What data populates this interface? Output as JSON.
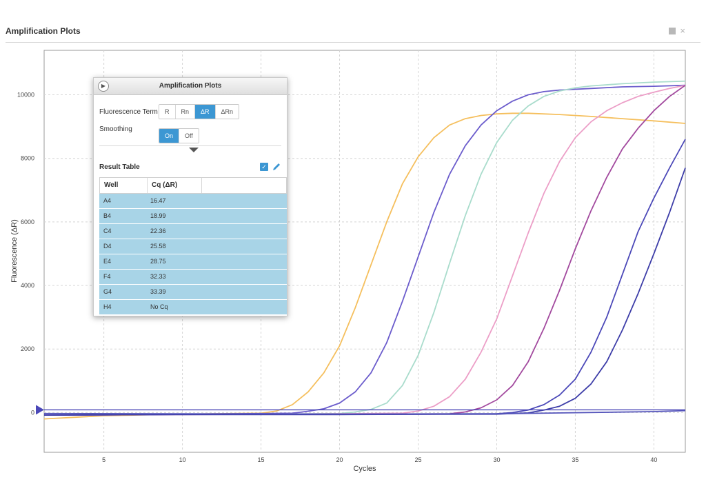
{
  "window": {
    "title": "Amplification Plots",
    "controls": [
      "square-icon",
      "close-icon"
    ],
    "close_glyph": "×"
  },
  "panel": {
    "title": "Amplification Plots",
    "fluorescence_label": "Fluorescence Term",
    "fluorescence_options": [
      "R",
      "Rn",
      "ΔR",
      "ΔRn"
    ],
    "fluorescence_selected": "ΔR",
    "smoothing_label": "Smoothing",
    "smoothing_options": [
      "On",
      "Off"
    ],
    "smoothing_selected": "On",
    "result_table": {
      "title": "Result Table",
      "columns": [
        "Well",
        "Cq (ΔR)"
      ],
      "rows": [
        [
          "A4",
          "16.47"
        ],
        [
          "B4",
          "18.99"
        ],
        [
          "C4",
          "22.36"
        ],
        [
          "D4",
          "25.58"
        ],
        [
          "E4",
          "28.75"
        ],
        [
          "F4",
          "32.33"
        ],
        [
          "G4",
          "33.39"
        ],
        [
          "H4",
          "No Cq"
        ]
      ]
    }
  },
  "colors": {
    "accent": "#3c97d3",
    "row_bg": "#a8d4e7"
  },
  "chart_data": {
    "type": "line",
    "title": "",
    "xlabel": "Cycles",
    "ylabel": "Fluorescence (ΔR)",
    "xlim": [
      1.2,
      42
    ],
    "ylim": [
      -1250,
      11400
    ],
    "xticks": [
      5,
      10,
      15,
      20,
      25,
      30,
      35,
      40
    ],
    "yticks": [
      0,
      2000,
      4000,
      6000,
      8000,
      10000
    ],
    "grid": true,
    "threshold": 0,
    "series": [
      {
        "name": "A4",
        "color": "#f5bf5d",
        "x": [
          1.2,
          5,
          10,
          15,
          16,
          17,
          18,
          19,
          20,
          21,
          22,
          23,
          24,
          25,
          26,
          27,
          28,
          29,
          30,
          31,
          32,
          34,
          36,
          38,
          40,
          42
        ],
        "values": [
          -200,
          -100,
          -50,
          -20,
          50,
          250,
          650,
          1250,
          2100,
          3300,
          4650,
          6000,
          7200,
          8050,
          8650,
          9050,
          9250,
          9350,
          9400,
          9420,
          9420,
          9380,
          9320,
          9250,
          9180,
          9100
        ]
      },
      {
        "name": "B4",
        "color": "#6b5ccc",
        "x": [
          1.2,
          10,
          15,
          17,
          18,
          19,
          20,
          21,
          22,
          23,
          24,
          25,
          26,
          27,
          28,
          29,
          30,
          31,
          32,
          33,
          34,
          36,
          38,
          40,
          42
        ],
        "values": [
          -80,
          -50,
          -30,
          -20,
          40,
          120,
          300,
          650,
          1250,
          2200,
          3500,
          4900,
          6300,
          7500,
          8400,
          9050,
          9500,
          9800,
          10000,
          10100,
          10150,
          10200,
          10250,
          10270,
          10300
        ]
      },
      {
        "name": "C4",
        "color": "#a9dccc",
        "x": [
          1.2,
          10,
          15,
          20,
          21,
          22,
          23,
          24,
          25,
          26,
          27,
          28,
          29,
          30,
          31,
          32,
          33,
          34,
          35,
          36,
          38,
          40,
          42
        ],
        "values": [
          -80,
          -60,
          -50,
          -30,
          20,
          100,
          300,
          850,
          1800,
          3150,
          4700,
          6200,
          7500,
          8500,
          9200,
          9650,
          9950,
          10120,
          10220,
          10280,
          10350,
          10400,
          10430
        ]
      },
      {
        "name": "D4",
        "color": "#ec9ec7",
        "x": [
          1.2,
          10,
          15,
          20,
          24,
          25,
          26,
          27,
          28,
          29,
          30,
          31,
          32,
          33,
          34,
          35,
          36,
          37,
          38,
          39,
          40,
          41,
          42
        ],
        "values": [
          -80,
          -60,
          -50,
          -40,
          -20,
          50,
          200,
          500,
          1050,
          1900,
          2950,
          4300,
          5650,
          6900,
          7900,
          8650,
          9150,
          9500,
          9750,
          9950,
          10080,
          10200,
          10300
        ]
      },
      {
        "name": "E4",
        "color": "#a2499e",
        "x": [
          1.2,
          10,
          20,
          27,
          28,
          29,
          30,
          31,
          32,
          33,
          34,
          35,
          36,
          37,
          38,
          39,
          40,
          41,
          42
        ],
        "values": [
          -80,
          -60,
          -50,
          -40,
          20,
          150,
          400,
          850,
          1600,
          2650,
          3850,
          5150,
          6350,
          7400,
          8300,
          8950,
          9500,
          9950,
          10300
        ]
      },
      {
        "name": "F4",
        "color": "#4b48b8",
        "x": [
          1.2,
          10,
          20,
          30,
          31,
          32,
          33,
          34,
          35,
          36,
          37,
          38,
          39,
          40,
          41,
          42
        ],
        "values": [
          -80,
          -60,
          -60,
          -40,
          0,
          80,
          250,
          550,
          1050,
          1900,
          3000,
          4350,
          5700,
          6750,
          7700,
          8600
        ]
      },
      {
        "name": "G4",
        "color": "#3d3da8",
        "x": [
          1.2,
          10,
          20,
          30,
          32,
          33,
          34,
          35,
          36,
          37,
          38,
          39,
          40,
          41,
          42
        ],
        "values": [
          -80,
          -60,
          -60,
          -50,
          -10,
          80,
          200,
          450,
          900,
          1600,
          2600,
          3750,
          5000,
          6300,
          7700
        ]
      },
      {
        "name": "H4",
        "color": "#5555bb",
        "x": [
          1.2,
          10,
          20,
          30,
          40,
          42
        ],
        "values": [
          -30,
          -40,
          -45,
          -40,
          30,
          60
        ]
      }
    ]
  }
}
